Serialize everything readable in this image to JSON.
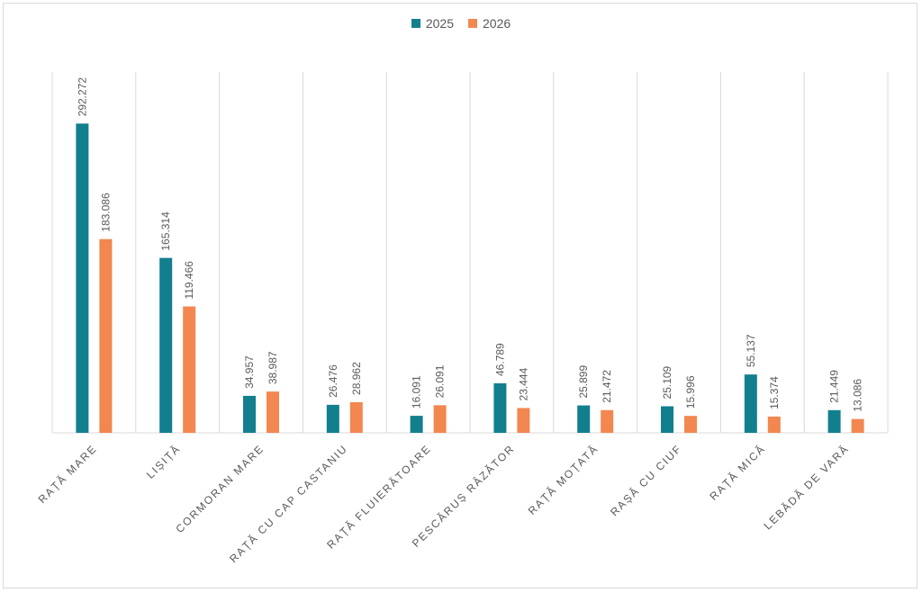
{
  "chart_data": {
    "type": "bar",
    "title": "",
    "xlabel": "",
    "ylabel": "",
    "ylim": [
      0,
      300
    ],
    "grid": "vertical category separators",
    "legend_position": "top-center",
    "categories": [
      "RAȚĂ MARE",
      "LIȘIȚĂ",
      "CORMORAN MARE",
      "RAȚĂ CU CAP CASTANIU",
      "RAȚĂ FLUIERĂTOARE",
      "PESCĂRUȘ RÂZĂTOR",
      "RAȚĂ MOȚATĂ",
      "RAȘĂ CU CIUF",
      "RAȚĂ MICĂ",
      "LEBĂDĂ DE VARĂ"
    ],
    "series": [
      {
        "name": "2025",
        "color": "#127f8e",
        "values": [
          292.272,
          165.314,
          34.957,
          26.476,
          16.091,
          46.789,
          25.899,
          25.109,
          55.137,
          21.449
        ],
        "labels": [
          "292.272",
          "165.314",
          "34.957",
          "26.476",
          "16.091",
          "46.789",
          "25.899",
          "25.109",
          "55.137",
          "21.449"
        ]
      },
      {
        "name": "2026",
        "color": "#f2874f",
        "values": [
          183.086,
          119.466,
          38.987,
          28.962,
          26.091,
          23.444,
          21.472,
          15.996,
          15.374,
          13.086
        ],
        "labels": [
          "183.086",
          "119.466",
          "38.987",
          "28.962",
          "26.091",
          "23.444",
          "21.472",
          "15.996",
          "15.374",
          "13.086"
        ]
      }
    ]
  }
}
